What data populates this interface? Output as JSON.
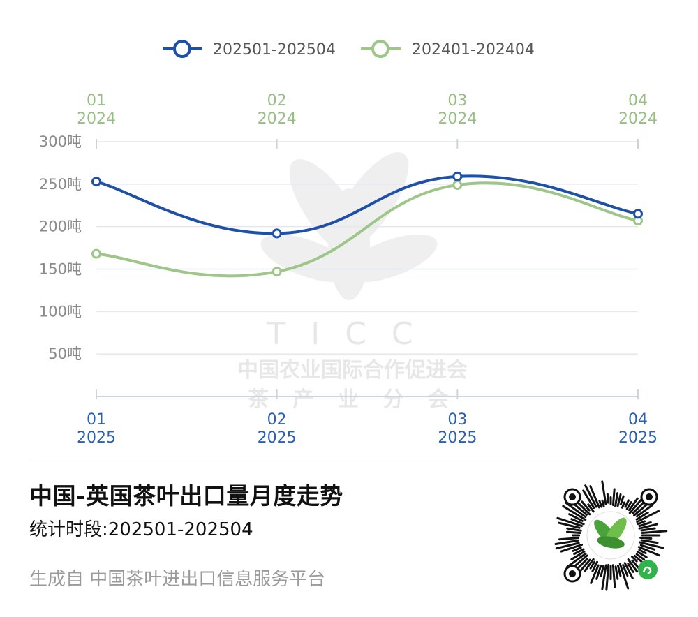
{
  "chart_data": {
    "type": "line",
    "title": "中国-英国茶叶出口量月度走势",
    "ylim": [
      0,
      300
    ],
    "y_ticks": [
      50,
      100,
      150,
      200,
      250,
      300
    ],
    "y_tick_unit": "吨",
    "grid": true,
    "legend_position": "top",
    "x_bottom": [
      {
        "month": "01",
        "year": "2025"
      },
      {
        "month": "02",
        "year": "2025"
      },
      {
        "month": "03",
        "year": "2025"
      },
      {
        "month": "04",
        "year": "2025"
      }
    ],
    "x_top": [
      {
        "month": "01",
        "year": "2024"
      },
      {
        "month": "02",
        "year": "2024"
      },
      {
        "month": "03",
        "year": "2024"
      },
      {
        "month": "04",
        "year": "2024"
      }
    ],
    "series": [
      {
        "name": "202501-202504",
        "color": "#1e50a8",
        "values": [
          253,
          192,
          259,
          215
        ]
      },
      {
        "name": "202401-202404",
        "color": "#9dc688",
        "values": [
          168,
          147,
          249,
          207
        ]
      }
    ]
  },
  "watermark": {
    "acronym": "TICC",
    "line1": "中国农业国际合作促进会",
    "line2": "茶 产 业 分 会"
  },
  "footer": {
    "title": "中国-英国茶叶出口量月度走势",
    "period": "统计时段:202501-202504",
    "source": "生成自 中国茶叶进出口信息服务平台"
  },
  "qr_icon": "mini-program-qr-code-icon"
}
